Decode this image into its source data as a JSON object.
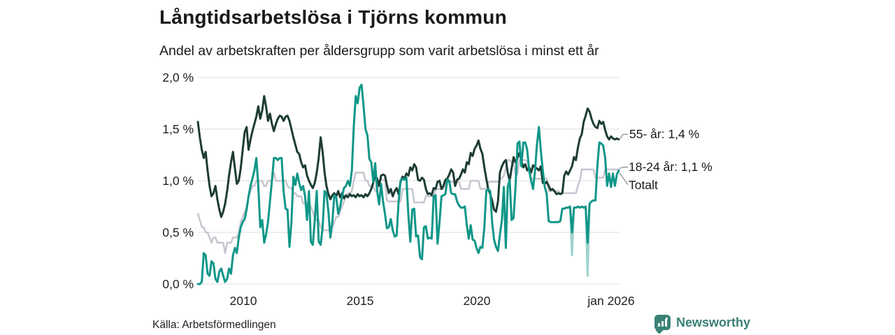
{
  "header": {
    "title": "Långtidsarbetslösa i Tjörns kommun",
    "subtitle": "Andel av arbetskraften per åldersgrupp som varit arbetslösa i minst ett år"
  },
  "source_text": "Källa: Arbetsförmedlingen",
  "branding": {
    "wordmark": "Newsworthy",
    "brand_color": "#3a8077"
  },
  "chart_data": {
    "type": "line",
    "title": "Långtidsarbetslösa i Tjörns kommun",
    "subtitle": "Andel av arbetskraften per åldersgrupp som varit arbetslösa i minst ett år",
    "x_start": "2008-01",
    "x_end": "2026-01",
    "ymax": 2.0,
    "grid": true,
    "grid_color": "#dcdcdc",
    "y_ticks": [
      {
        "value": 2.0,
        "label": "2,0 %"
      },
      {
        "value": 1.5,
        "label": "1,5 %"
      },
      {
        "value": 1.0,
        "label": "1,0 %"
      },
      {
        "value": 0.5,
        "label": "0,5 %"
      },
      {
        "value": 0.0,
        "label": "0,0 %"
      }
    ],
    "x_ticks": [
      {
        "label": "2010"
      },
      {
        "label": "2015"
      },
      {
        "label": "2020"
      },
      {
        "label": "jan 2026"
      }
    ],
    "end_labels": [
      {
        "text": "55- år: 1,4 %"
      },
      {
        "text": "18-24 år: 1,1 %"
      },
      {
        "text": "Totalt"
      }
    ],
    "light_dips": [
      {
        "series": "18-24 år",
        "index": 192,
        "value": 0.28
      },
      {
        "series": "18-24 år",
        "index": 200,
        "value": 0.08
      }
    ],
    "series": [
      {
        "name": "Totalt",
        "color": "#c7c5d0",
        "width": 2.5,
        "last_value": 1.11,
        "values": [
          0.68,
          0.62,
          0.55,
          0.55,
          0.5,
          0.5,
          0.45,
          0.4,
          0.45,
          0.45,
          0.4,
          0.4,
          0.4,
          0.4,
          0.3,
          0.4,
          0.4,
          0.4,
          0.45,
          0.45,
          0.45,
          0.5,
          0.6,
          0.65,
          0.7,
          0.75,
          0.85,
          0.9,
          0.95,
          0.95,
          1.0,
          1.0,
          1.0,
          1.0,
          0.95,
          0.95,
          1.0,
          1.0,
          1.0,
          1.08,
          1.0,
          1.0,
          1.0,
          1.0,
          1.0,
          1.0,
          0.95,
          0.93,
          0.93,
          0.88,
          0.88,
          0.85,
          0.85,
          0.85,
          0.78,
          0.78,
          0.78,
          0.8,
          0.75,
          0.7,
          0.63,
          0.62,
          0.62,
          0.55,
          0.52,
          0.52,
          0.52,
          0.52,
          0.52,
          0.55,
          0.6,
          0.65,
          0.65,
          0.7,
          0.75,
          0.8,
          0.85,
          0.88,
          0.88,
          0.9,
          1.0,
          1.08,
          1.08,
          1.08,
          1.08,
          1.08,
          1.0,
          1.0,
          0.95,
          0.95,
          0.95,
          0.9,
          0.9,
          1.0,
          1.01,
          1.01,
          1.01,
          0.81,
          0.8,
          0.8,
          0.8,
          0.8,
          0.8,
          0.8,
          0.8,
          0.92,
          0.92,
          0.92,
          0.92,
          0.92,
          0.92,
          0.79,
          0.79,
          0.79,
          0.79,
          0.79,
          0.79,
          0.85,
          0.85,
          0.85,
          0.85,
          0.85,
          0.92,
          0.92,
          0.92,
          0.92,
          0.92,
          0.99,
          0.99,
          0.99,
          0.99,
          0.99,
          0.99,
          0.99,
          0.99,
          0.92,
          0.92,
          0.92,
          0.92,
          0.92,
          1.0,
          1.0,
          1.0,
          1.0,
          1.0,
          0.92,
          0.92,
          0.92,
          0.92,
          0.99,
          0.99,
          0.99,
          0.99,
          0.99,
          0.99,
          1.02,
          1.02,
          1.05,
          1.12,
          1.2,
          1.2,
          1.18,
          1.2,
          1.06,
          1.06,
          1.2,
          1.2,
          1.2,
          1.2,
          1.19,
          1.12,
          1.02,
          1.02,
          1.02,
          1.02,
          1.02,
          1.02,
          1.02,
          1.02,
          1.02,
          0.9,
          0.9,
          0.9,
          0.9,
          0.9,
          0.9,
          0.88,
          0.88,
          0.88,
          0.88,
          0.88,
          0.88,
          0.88,
          0.88,
          0.88,
          0.95,
          1.0,
          1.11,
          1.11,
          1.11,
          1.11,
          1.11,
          1.11,
          1.11,
          1.03,
          1.03,
          1.03,
          1.03,
          1.03,
          1.11,
          1.11,
          1.11,
          1.11,
          1.11,
          1.11,
          1.11,
          1.11
        ]
      },
      {
        "name": "55- år",
        "color": "#1d3c33",
        "width": 3,
        "last_value": 1.4,
        "values": [
          1.57,
          1.42,
          1.3,
          1.22,
          1.28,
          1.1,
          0.95,
          0.85,
          0.88,
          0.95,
          0.82,
          0.72,
          0.65,
          0.7,
          0.78,
          0.9,
          1.05,
          1.18,
          1.28,
          1.12,
          0.97,
          1.0,
          1.12,
          1.3,
          1.47,
          1.52,
          1.3,
          1.4,
          1.48,
          1.55,
          1.62,
          1.72,
          1.6,
          1.68,
          1.82,
          1.72,
          1.58,
          1.65,
          1.55,
          1.48,
          1.55,
          1.6,
          1.63,
          1.62,
          1.58,
          1.62,
          1.63,
          1.58,
          1.5,
          1.42,
          1.35,
          1.28,
          1.26,
          1.18,
          1.13,
          1.15,
          1.05,
          1.0,
          0.96,
          0.93,
          0.98,
          1.08,
          1.22,
          1.42,
          1.28,
          1.08,
          0.95,
          0.87,
          0.82,
          0.86,
          0.88,
          0.85,
          0.9,
          0.84,
          0.88,
          0.83,
          0.86,
          0.84,
          0.87,
          0.85,
          0.86,
          0.84,
          0.87,
          0.85,
          0.86,
          0.84,
          0.87,
          0.85,
          0.88,
          0.92,
          0.98,
          1.05,
          1.02,
          0.95,
          1.05,
          1.06,
          1.05,
          0.96,
          0.88,
          0.92,
          0.85,
          0.9,
          0.93,
          0.87,
          0.99,
          1.04,
          1.02,
          1.07,
          1.05,
          1.13,
          1.1,
          1.16,
          1.13,
          1.01,
          1.0,
          1.03,
          1.01,
          0.92,
          0.87,
          0.88,
          0.86,
          0.93,
          0.92,
          0.99,
          1.0,
          0.92,
          0.95,
          1.01,
          1.02,
          1.06,
          1.11,
          1.08,
          0.95,
          1.01,
          1.02,
          1.06,
          1.11,
          1.08,
          1.18,
          1.16,
          1.27,
          1.24,
          1.31,
          1.34,
          1.39,
          1.31,
          1.26,
          1.13,
          1.02,
          0.92,
          0.87,
          0.81,
          0.72,
          0.7,
          0.8,
          1.08,
          1.14,
          1.18,
          1.2,
          1.08,
          1.0,
          1.12,
          1.23,
          1.18,
          1.22,
          1.27,
          1.2,
          1.13,
          1.16,
          1.1,
          1.13,
          1.08,
          1.15,
          1.13,
          1.12,
          1.1,
          1.14,
          0.98,
          0.97,
          0.99,
          0.95,
          0.91,
          0.92,
          0.9,
          0.87,
          0.88,
          0.87,
          0.88,
          1.05,
          1.09,
          1.06,
          1.1,
          1.14,
          1.23,
          1.2,
          1.32,
          1.41,
          1.45,
          1.57,
          1.63,
          1.7,
          1.67,
          1.6,
          1.55,
          1.52,
          1.51,
          1.58,
          1.55,
          1.57,
          1.49,
          1.43,
          1.4,
          1.43,
          1.41,
          1.4,
          1.41,
          1.4
        ]
      },
      {
        "name": "18-24 år",
        "color": "#0f9688",
        "width": 3,
        "light_color": "#9ed3ca",
        "last_value": 1.1,
        "values": [
          0.0,
          0.0,
          0.02,
          0.3,
          0.28,
          0.1,
          0.08,
          0.22,
          0.2,
          0.05,
          0.02,
          0.12,
          0.15,
          0.08,
          0.02,
          0.05,
          0.15,
          0.1,
          0.28,
          0.35,
          0.3,
          0.45,
          0.55,
          0.6,
          0.63,
          0.72,
          0.85,
          0.95,
          1.02,
          1.1,
          1.22,
          0.95,
          0.55,
          0.62,
          0.4,
          0.48,
          0.6,
          0.8,
          1.0,
          1.22,
          1.22,
          1.2,
          1.22,
          1.22,
          0.9,
          0.73,
          0.72,
          0.36,
          0.6,
          1.04,
          0.96,
          1.07,
          0.98,
          0.91,
          0.95,
          0.85,
          0.62,
          0.9,
          0.41,
          0.38,
          0.62,
          0.9,
          0.41,
          0.38,
          0.55,
          0.9,
          0.88,
          0.7,
          0.45,
          0.6,
          0.86,
          0.84,
          0.68,
          0.75,
          0.85,
          0.93,
          0.95,
          1.0,
          0.95,
          1.1,
          1.53,
          1.82,
          1.75,
          1.9,
          1.93,
          1.73,
          1.5,
          1.44,
          1.21,
          1.18,
          0.99,
          1.17,
          0.9,
          0.77,
          0.97,
          0.8,
          0.68,
          0.54,
          0.55,
          0.63,
          0.52,
          0.46,
          0.47,
          0.8,
          1.0,
          1.02,
          1.01,
          1.03,
          0.67,
          0.41,
          0.72,
          0.73,
          0.46,
          0.47,
          0.26,
          0.24,
          0.55,
          0.56,
          0.44,
          0.45,
          0.44,
          0.85,
          0.86,
          0.39,
          0.6,
          0.85,
          0.86,
          0.87,
          1.01,
          1.0,
          0.88,
          0.87,
          0.87,
          0.8,
          0.76,
          0.74,
          0.74,
          0.75,
          0.57,
          0.44,
          0.57,
          0.43,
          0.42,
          0.35,
          0.3,
          0.36,
          0.35,
          0.55,
          0.9,
          0.92,
          0.9,
          0.6,
          0.43,
          0.36,
          0.32,
          0.48,
          0.62,
          0.94,
          0.35,
          0.94,
          1.01,
          0.62,
          0.64,
          0.94,
          1.36,
          1.38,
          1.14,
          1.37,
          1.37,
          1.3,
          1.1,
          1.0,
          0.92,
          1.1,
          1.35,
          1.52,
          1.29,
          1.1,
          0.94,
          0.87,
          0.61,
          0.6,
          0.6,
          0.6,
          0.6,
          0.6,
          0.61,
          0.73,
          0.73,
          0.74,
          0.74,
          0.75,
          0.5,
          0.74,
          0.74,
          0.75,
          0.74,
          0.75,
          0.74,
          0.75,
          0.4,
          0.78,
          0.8,
          0.81,
          0.81,
          1.14,
          1.37,
          1.36,
          1.34,
          1.22,
          0.95,
          1.07,
          0.94,
          1.07,
          0.95,
          1.06,
          1.1
        ]
      }
    ]
  }
}
